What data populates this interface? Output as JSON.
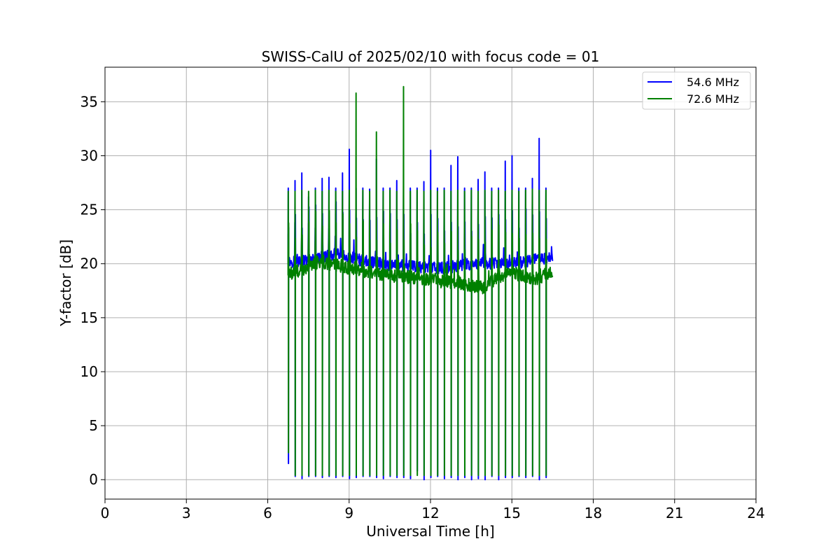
{
  "chart_data": {
    "type": "line",
    "title": "SWISS-CalU of 2025/02/10 with focus code = 01",
    "xlabel": "Universal Time [h]",
    "ylabel": "Y-factor [dB]",
    "xlim": [
      0,
      24
    ],
    "ylim": [
      -1.8,
      38.2
    ],
    "xticks": [
      0,
      3,
      6,
      9,
      12,
      15,
      18,
      21,
      24
    ],
    "yticks": [
      0,
      5,
      10,
      15,
      20,
      25,
      30,
      35
    ],
    "grid": true,
    "legend_position": "top-right",
    "time_range": [
      6.75,
      16.5
    ],
    "calibration_times": [
      6.75,
      7.0,
      7.25,
      7.5,
      7.75,
      8.0,
      8.25,
      8.5,
      8.75,
      9.0,
      9.25,
      9.5,
      9.75,
      10.0,
      10.25,
      10.5,
      10.75,
      11.0,
      11.25,
      11.5,
      11.75,
      12.0,
      12.25,
      12.5,
      12.75,
      13.0,
      13.25,
      13.5,
      13.75,
      14.0,
      14.25,
      14.5,
      14.75,
      15.0,
      15.25,
      15.5,
      15.75,
      16.0,
      16.25
    ],
    "series": [
      {
        "name": "54.6 MHz",
        "color": "#0000ff",
        "baseline": [
          [
            6.75,
            20.2
          ],
          [
            7.5,
            20.3
          ],
          [
            8.0,
            20.6
          ],
          [
            8.5,
            20.9
          ],
          [
            9.0,
            20.6
          ],
          [
            9.5,
            20.3
          ],
          [
            10.0,
            20.1
          ],
          [
            10.5,
            19.9
          ],
          [
            11.0,
            19.8
          ],
          [
            11.5,
            19.7
          ],
          [
            12.0,
            19.6
          ],
          [
            12.5,
            19.6
          ],
          [
            13.0,
            19.8
          ],
          [
            13.5,
            20.0
          ],
          [
            14.0,
            20.1
          ],
          [
            14.5,
            20.0
          ],
          [
            15.0,
            20.0
          ],
          [
            15.5,
            20.2
          ],
          [
            16.0,
            20.5
          ],
          [
            16.5,
            20.5
          ]
        ],
        "peaks": [
          27.0,
          27.7,
          28.4,
          26.2,
          27.0,
          27.9,
          28.0,
          27.0,
          28.4,
          30.6,
          27.0,
          27.0,
          26.9,
          29.7,
          27.0,
          27.0,
          27.7,
          27.0,
          27.0,
          27.0,
          27.6,
          30.5,
          27.0,
          27.0,
          29.1,
          29.9,
          27.0,
          27.0,
          27.8,
          28.5,
          27.0,
          27.0,
          29.5,
          30.0,
          27.0,
          27.0,
          27.9,
          31.6,
          27.0
        ],
        "dips": [
          1.5,
          0.3,
          0.1,
          0.3,
          0.3,
          0.2,
          0.3,
          0.2,
          0.3,
          0.1,
          0.2,
          0.3,
          0.3,
          0.2,
          0.1,
          0.3,
          0.2,
          0.2,
          0.1,
          0.8,
          0.0,
          0.2,
          0.3,
          0.1,
          0.2,
          0.0,
          0.2,
          0.0,
          0.1,
          0.0,
          0.3,
          0.0,
          0.2,
          0.2,
          0.3,
          0.2,
          0.3,
          0.0,
          0.2
        ]
      },
      {
        "name": "72.6 MHz",
        "color": "#008000",
        "baseline": [
          [
            6.75,
            19.0
          ],
          [
            7.5,
            19.7
          ],
          [
            8.0,
            20.1
          ],
          [
            8.5,
            19.9
          ],
          [
            9.0,
            19.6
          ],
          [
            9.5,
            19.3
          ],
          [
            10.0,
            19.1
          ],
          [
            10.5,
            18.9
          ],
          [
            11.0,
            18.8
          ],
          [
            11.5,
            18.7
          ],
          [
            12.0,
            18.5
          ],
          [
            12.5,
            18.3
          ],
          [
            13.0,
            18.2
          ],
          [
            13.5,
            18.0
          ],
          [
            14.0,
            17.8
          ],
          [
            14.5,
            18.8
          ],
          [
            15.0,
            19.2
          ],
          [
            15.5,
            18.8
          ],
          [
            16.0,
            18.6
          ],
          [
            16.5,
            19.2
          ]
        ],
        "peaks": [
          26.7,
          26.7,
          26.8,
          26.7,
          26.8,
          26.7,
          26.8,
          26.7,
          26.7,
          26.8,
          35.8,
          26.8,
          26.7,
          32.2,
          26.7,
          26.8,
          26.7,
          36.4,
          26.7,
          26.8,
          26.7,
          26.8,
          26.7,
          26.8,
          26.7,
          26.8,
          26.7,
          26.8,
          26.7,
          26.8,
          26.7,
          26.8,
          26.7,
          26.8,
          26.7,
          26.8,
          26.9,
          26.8,
          26.8
        ],
        "dips": [
          2.5,
          0.4,
          0.4,
          0.4,
          0.4,
          0.4,
          0.4,
          0.4,
          0.4,
          0.4,
          0.4,
          0.4,
          0.4,
          0.4,
          0.4,
          0.4,
          0.4,
          0.4,
          0.4,
          0.4,
          0.4,
          0.4,
          0.4,
          0.4,
          0.4,
          0.4,
          0.4,
          0.4,
          0.4,
          0.4,
          0.4,
          0.4,
          0.4,
          0.4,
          0.4,
          0.4,
          0.4,
          0.4,
          0.4
        ]
      }
    ]
  }
}
